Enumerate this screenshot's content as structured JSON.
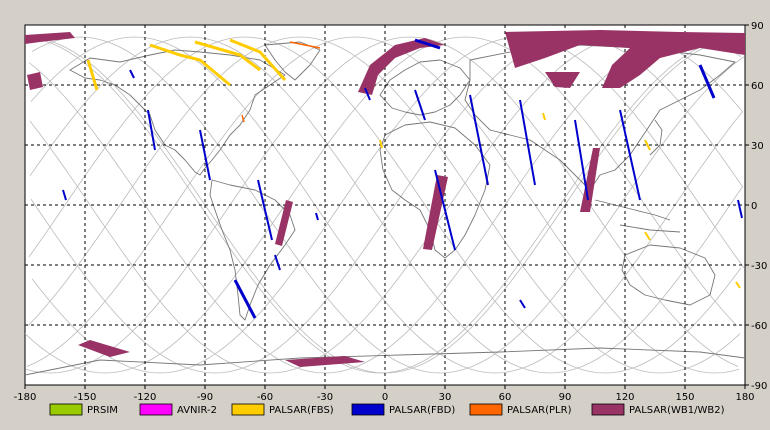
{
  "map": {
    "lon_ticks": [
      "-180",
      "-150",
      "-120",
      "-90",
      "-60",
      "-30",
      "0",
      "30",
      "60",
      "90",
      "120",
      "150",
      "180"
    ],
    "lat_ticks": [
      "90",
      "60",
      "30",
      "0",
      "-30",
      "-60",
      "-90"
    ],
    "lon_range": [
      -180,
      180
    ],
    "lat_range": [
      -90,
      90
    ],
    "grid": true
  },
  "legend": [
    {
      "label": "PRSIM",
      "color": "#99cc00"
    },
    {
      "label": "AVNIR-2",
      "color": "#ff00ff"
    },
    {
      "label": "PALSAR(FBS)",
      "color": "#ffcc00"
    },
    {
      "label": "PALSAR(FBD)",
      "color": "#0000cc"
    },
    {
      "label": "PALSAR(PLR)",
      "color": "#ff6600"
    },
    {
      "label": "PALSAR(WB1/WB2)",
      "color": "#993366"
    }
  ],
  "colors": {
    "background": "#d4d0c8",
    "map_bg": "#ffffff",
    "coast": "#777777",
    "orbit": "#bbbbbb"
  }
}
